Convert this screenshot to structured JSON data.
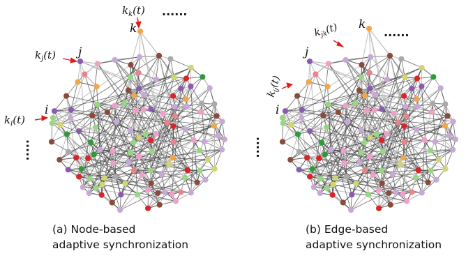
{
  "panels": [
    {
      "id": "a",
      "caption_line1": "(a) Node-based",
      "caption_line2": "adaptive synchronization",
      "node_labels": {
        "k": "k",
        "j": "j",
        "i": "i"
      },
      "gain_labels": [
        "k_k(t)",
        "k_j(t)",
        "k_i(t)"
      ],
      "ellipsis_h": "......",
      "ellipsis_v": "....."
    },
    {
      "id": "b",
      "caption_line1": "(b) Edge-based",
      "caption_line2": "adaptive synchronization",
      "node_labels": {
        "k": "k",
        "j": "j",
        "i": "i"
      },
      "gain_labels": [
        "k_jk(t)",
        "k_ij(t)"
      ],
      "ellipsis_h": "......",
      "ellipsis_v": "....."
    }
  ],
  "colors": {
    "arrow": "#e01b1b",
    "edge_dark": "#4a4a4a",
    "edge_light": "#b8b8b8",
    "node_palette": [
      "#e8858a",
      "#d8242a",
      "#8a5bb0",
      "#c7a8d6",
      "#98d683",
      "#8a4a3c",
      "#f0a0c8",
      "#cfd672",
      "#2e9a3a",
      "#f1a64a",
      "#a9a9a9"
    ]
  }
}
